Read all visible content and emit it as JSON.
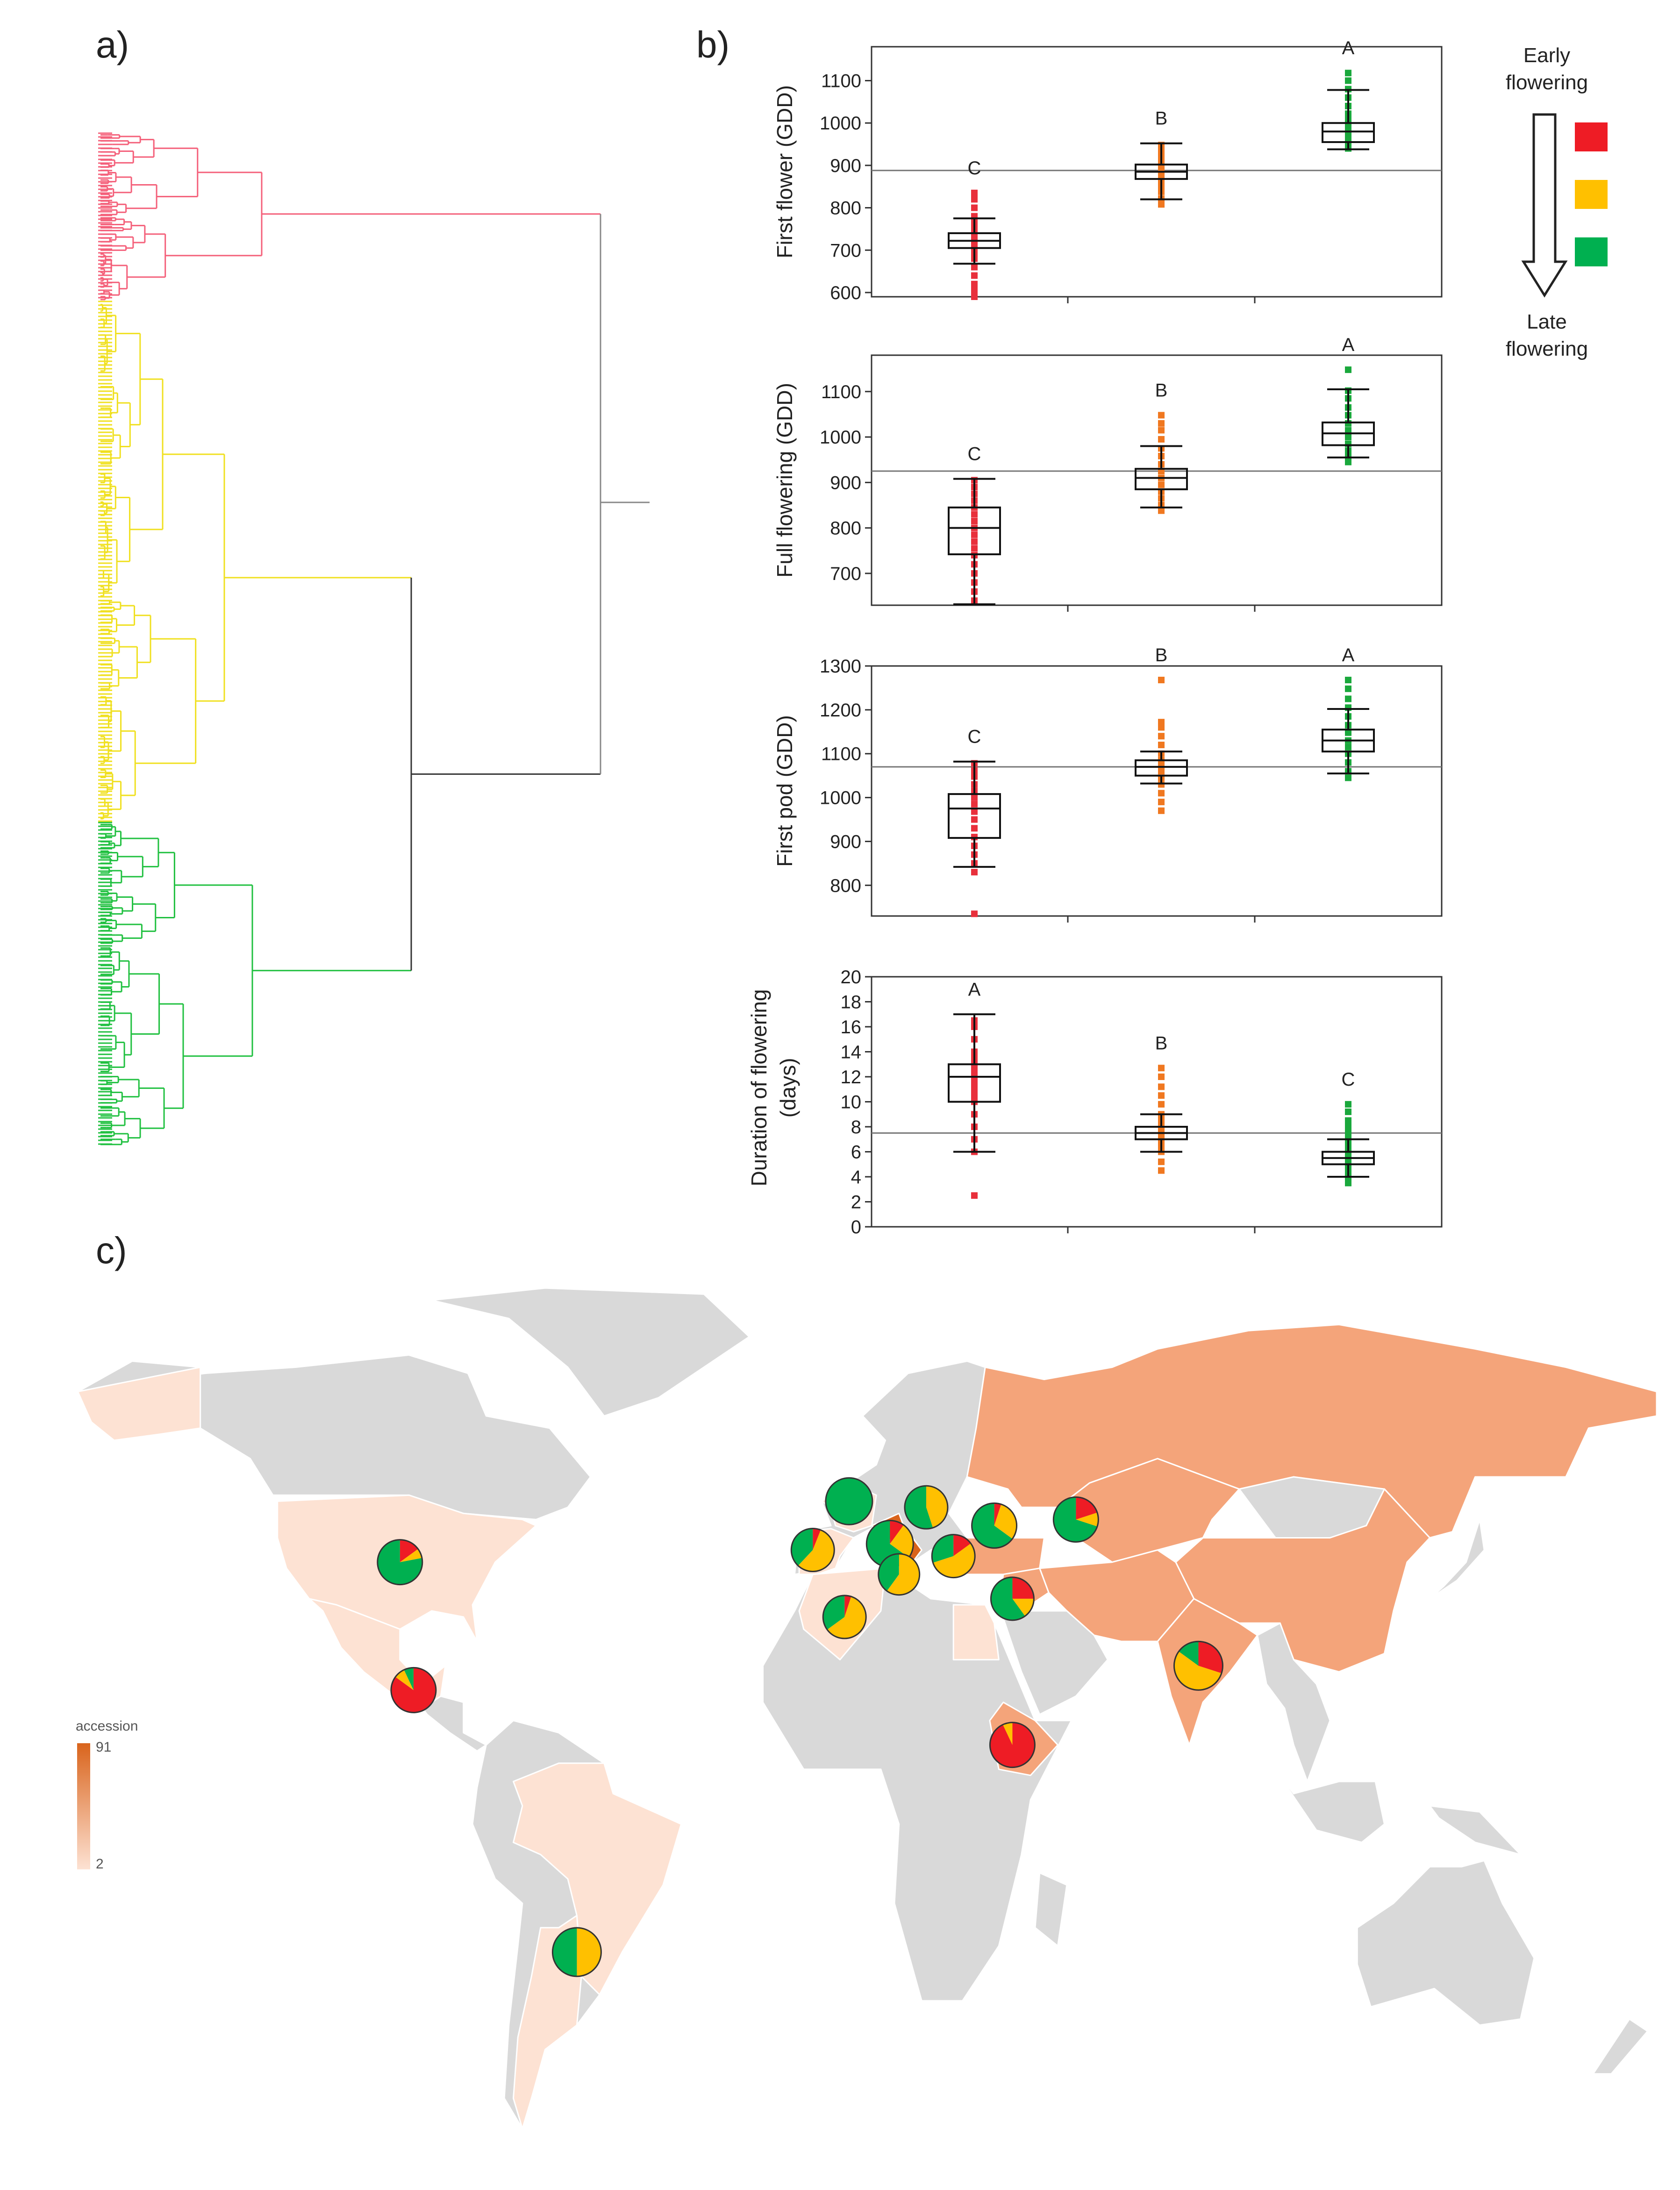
{
  "panels": {
    "a": "a)",
    "b": "b)",
    "c": "c)"
  },
  "colors": {
    "early": "#ee1c25",
    "mid": "#ffc000",
    "late": "#00b050",
    "early_pts": "#e8303c",
    "mid_pts": "#f07820",
    "late_pts": "#1aa83c",
    "dendro_red": "#f4607a",
    "dendro_yellow": "#f0e020",
    "dendro_green": "#20c040",
    "land_none": "#d9d9d9",
    "land_low": "#fde2d3",
    "land_mid": "#f4a47a",
    "land_high": "#d9641c"
  },
  "legend": {
    "top_text": "Early flowering",
    "bottom_text": "Late flowering",
    "arrow_icon": "down-arrow-icon"
  },
  "chart_data": [
    {
      "type": "box",
      "ylabel": "First flower (GDD)",
      "ylim": [
        590,
        1180
      ],
      "yticks": [
        600,
        700,
        800,
        900,
        1000,
        1100
      ],
      "reference_line": 888,
      "groups": [
        {
          "letter": "C",
          "color": "early",
          "q1": 705,
          "median": 722,
          "q3": 740,
          "whisker_low": 668,
          "whisker_high": 775,
          "points": [
            590,
            605,
            620,
            640,
            660,
            680,
            695,
            705,
            715,
            722,
            730,
            740,
            752,
            765,
            780,
            800,
            820,
            835
          ]
        },
        {
          "letter": "B",
          "color": "mid",
          "q1": 868,
          "median": 885,
          "q3": 902,
          "whisker_low": 820,
          "whisker_high": 952,
          "points": [
            808,
            822,
            838,
            850,
            862,
            875,
            885,
            895,
            905,
            915,
            925,
            938,
            948
          ]
        },
        {
          "letter": "A",
          "color": "late",
          "q1": 955,
          "median": 980,
          "q3": 1000,
          "whisker_low": 938,
          "whisker_high": 1078,
          "points": [
            940,
            950,
            962,
            975,
            985,
            995,
            1008,
            1022,
            1040,
            1060,
            1080,
            1100,
            1118
          ]
        }
      ]
    },
    {
      "type": "box",
      "ylabel": "Full flowering (GDD)",
      "ylim": [
        630,
        1180
      ],
      "yticks": [
        700,
        800,
        900,
        1000,
        1100
      ],
      "reference_line": 925,
      "groups": [
        {
          "letter": "C",
          "color": "early",
          "q1": 742,
          "median": 800,
          "q3": 845,
          "whisker_low": 632,
          "whisker_high": 908,
          "points": [
            640,
            660,
            680,
            700,
            720,
            740,
            755,
            770,
            785,
            800,
            815,
            830,
            845,
            860,
            875,
            890,
            905
          ]
        },
        {
          "letter": "B",
          "color": "mid",
          "q1": 885,
          "median": 910,
          "q3": 930,
          "whisker_low": 845,
          "whisker_high": 980,
          "points": [
            838,
            850,
            865,
            880,
            895,
            910,
            925,
            940,
            958,
            975,
            995,
            1015,
            1030,
            1048
          ]
        },
        {
          "letter": "A",
          "color": "late",
          "q1": 982,
          "median": 1008,
          "q3": 1032,
          "whisker_low": 955,
          "whisker_high": 1105,
          "points": [
            945,
            958,
            970,
            985,
            1000,
            1015,
            1030,
            1048,
            1065,
            1085,
            1102,
            1148
          ]
        }
      ]
    },
    {
      "type": "box",
      "ylabel": "First pod (GDD)",
      "ylim": [
        730,
        1300
      ],
      "yticks": [
        800,
        900,
        1000,
        1100,
        1200,
        1300
      ],
      "reference_line": 1070,
      "groups": [
        {
          "letter": "C",
          "color": "early",
          "q1": 908,
          "median": 975,
          "q3": 1008,
          "whisker_low": 842,
          "whisker_high": 1082,
          "points": [
            735,
            830,
            850,
            870,
            890,
            910,
            930,
            950,
            968,
            985,
            1000,
            1015,
            1030,
            1048,
            1062,
            1078
          ]
        },
        {
          "letter": "B",
          "color": "mid",
          "q1": 1050,
          "median": 1070,
          "q3": 1085,
          "whisker_low": 1032,
          "whisker_high": 1105,
          "points": [
            970,
            990,
            1010,
            1030,
            1045,
            1060,
            1072,
            1085,
            1100,
            1120,
            1140,
            1160,
            1172,
            1268
          ]
        },
        {
          "letter": "A",
          "color": "late",
          "q1": 1105,
          "median": 1130,
          "q3": 1155,
          "whisker_low": 1055,
          "whisker_high": 1202,
          "points": [
            1045,
            1060,
            1080,
            1100,
            1115,
            1130,
            1148,
            1165,
            1185,
            1205,
            1225,
            1248,
            1268
          ]
        }
      ]
    },
    {
      "type": "box",
      "ylabel": "Duration of flowering (days)",
      "ylim": [
        0,
        20
      ],
      "yticks": [
        0,
        2,
        4,
        6,
        8,
        10,
        12,
        14,
        16,
        18,
        20
      ],
      "reference_line": 7.5,
      "groups": [
        {
          "letter": "A",
          "color": "early",
          "q1": 10,
          "median": 12,
          "q3": 13,
          "whisker_low": 6,
          "whisker_high": 17,
          "points": [
            2.5,
            6,
            7,
            8,
            9,
            10,
            10.5,
            11,
            11.5,
            12,
            12.5,
            13,
            13.5,
            14,
            15,
            16,
            16.5
          ]
        },
        {
          "letter": "B",
          "color": "mid",
          "q1": 7,
          "median": 7.5,
          "q3": 8,
          "whisker_low": 6,
          "whisker_high": 9,
          "points": [
            4.5,
            5.2,
            6,
            6.5,
            7,
            7.5,
            8,
            8.5,
            9,
            9.8,
            10.5,
            11.2,
            12,
            12.7
          ]
        },
        {
          "letter": "C",
          "color": "late",
          "q1": 5,
          "median": 5.5,
          "q3": 6,
          "whisker_low": 4,
          "whisker_high": 7,
          "points": [
            3.5,
            4,
            4.5,
            5,
            5.5,
            6,
            6.5,
            7,
            7.5,
            8,
            8.5,
            9.2,
            9.8
          ]
        }
      ]
    }
  ],
  "map": {
    "scale_title": "accession",
    "scale_max": "91",
    "scale_min": "2",
    "pies": [
      {
        "name": "usa",
        "lon": -97,
        "lat": 38,
        "r": 48,
        "early": 0.15,
        "mid": 0.07,
        "late": 0.78
      },
      {
        "name": "mexico",
        "lon": -94,
        "lat": 17,
        "r": 48,
        "early": 0.85,
        "mid": 0.08,
        "late": 0.07
      },
      {
        "name": "argentina",
        "lon": -58,
        "lat": -26,
        "r": 52,
        "early": 0.0,
        "mid": 0.5,
        "late": 0.5
      },
      {
        "name": "france",
        "lon": 2,
        "lat": 48,
        "r": 50,
        "early": 0.0,
        "mid": 0.0,
        "late": 1.0
      },
      {
        "name": "spain",
        "lon": -6,
        "lat": 40,
        "r": 46,
        "early": 0.06,
        "mid": 0.56,
        "late": 0.38
      },
      {
        "name": "italy",
        "lon": 11,
        "lat": 41,
        "r": 50,
        "early": 0.1,
        "mid": 0.25,
        "late": 0.65
      },
      {
        "name": "hungary",
        "lon": 19,
        "lat": 47,
        "r": 46,
        "early": 0.0,
        "mid": 0.45,
        "late": 0.55
      },
      {
        "name": "greece",
        "lon": 25,
        "lat": 39,
        "r": 46,
        "early": 0.15,
        "mid": 0.55,
        "late": 0.3
      },
      {
        "name": "tunisia",
        "lon": 13,
        "lat": 36,
        "r": 44,
        "early": 0.0,
        "mid": 0.6,
        "late": 0.4
      },
      {
        "name": "turkey",
        "lon": 34,
        "lat": 44,
        "r": 48,
        "early": 0.05,
        "mid": 0.3,
        "late": 0.65
      },
      {
        "name": "kazakhstan",
        "lon": 52,
        "lat": 45,
        "r": 48,
        "early": 0.2,
        "mid": 0.1,
        "late": 0.7
      },
      {
        "name": "syria",
        "lon": 38,
        "lat": 32,
        "r": 46,
        "early": 0.25,
        "mid": 0.15,
        "late": 0.6
      },
      {
        "name": "algeria",
        "lon": 1,
        "lat": 29,
        "r": 46,
        "early": 0.05,
        "mid": 0.6,
        "late": 0.35
      },
      {
        "name": "india",
        "lon": 79,
        "lat": 21,
        "r": 52,
        "early": 0.3,
        "mid": 0.55,
        "late": 0.15
      },
      {
        "name": "ethiopia",
        "lon": 38,
        "lat": 8,
        "r": 48,
        "early": 0.93,
        "mid": 0.07,
        "late": 0.0
      }
    ]
  }
}
